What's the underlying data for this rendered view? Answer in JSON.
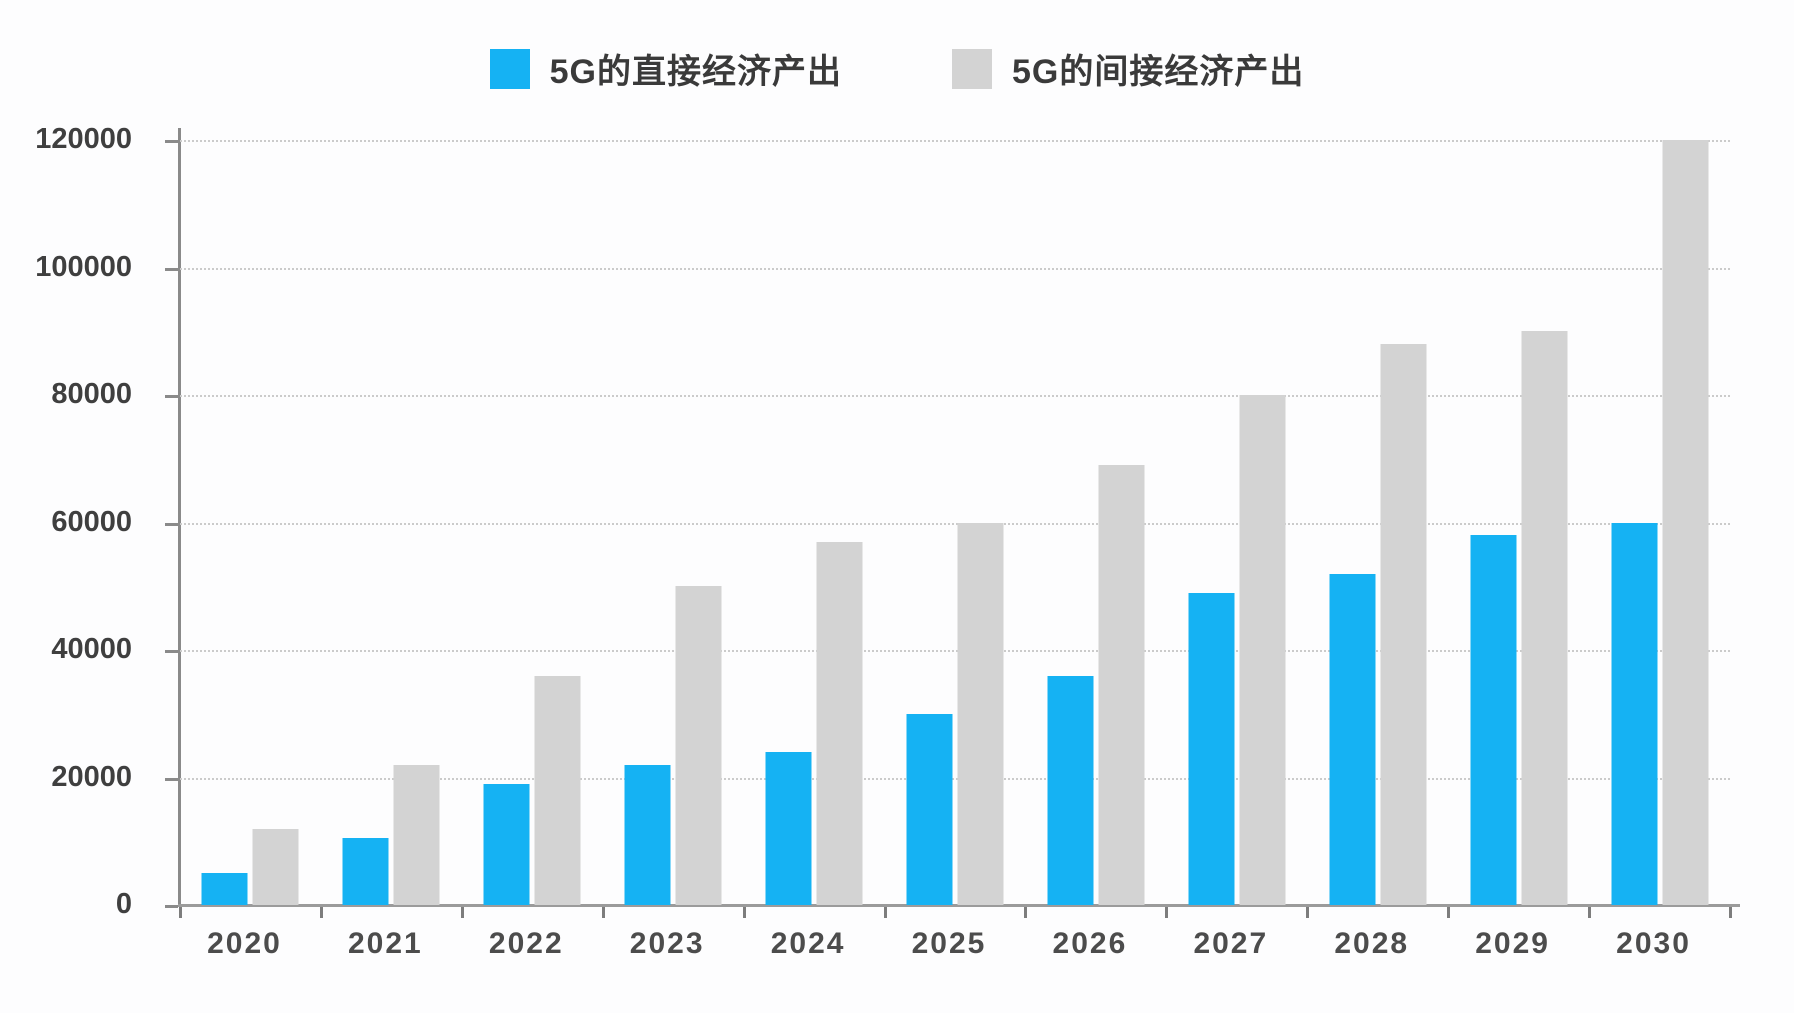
{
  "chart_data": {
    "type": "bar",
    "title": "",
    "xlabel": "",
    "ylabel": "",
    "categories": [
      "2020",
      "2021",
      "2022",
      "2023",
      "2024",
      "2025",
      "2026",
      "2027",
      "2028",
      "2029",
      "2030"
    ],
    "series": [
      {
        "name": "5G的直接经济产出",
        "color": "#15B2F3",
        "values": [
          5000,
          10500,
          19000,
          22000,
          24000,
          30000,
          36000,
          49000,
          52000,
          58000,
          60000
        ]
      },
      {
        "name": "5G的间接经济产出",
        "color": "#D3D3D3",
        "values": [
          12000,
          22000,
          36000,
          50000,
          57000,
          60000,
          69000,
          80000,
          88000,
          90000,
          120000
        ]
      }
    ],
    "ylim": [
      0,
      120000
    ],
    "yticks": [
      0,
      20000,
      40000,
      60000,
      80000,
      100000,
      120000
    ],
    "grid": "horizontal-dotted",
    "legend_position": "top-center"
  },
  "colors": {
    "direct_series": "#15B2F3",
    "indirect_series": "#D3D3D3",
    "gridline": "#CBCBCB",
    "axis": "#8A8A8A",
    "label_text": "#3F3F3F",
    "background": "#FDFDFE"
  }
}
